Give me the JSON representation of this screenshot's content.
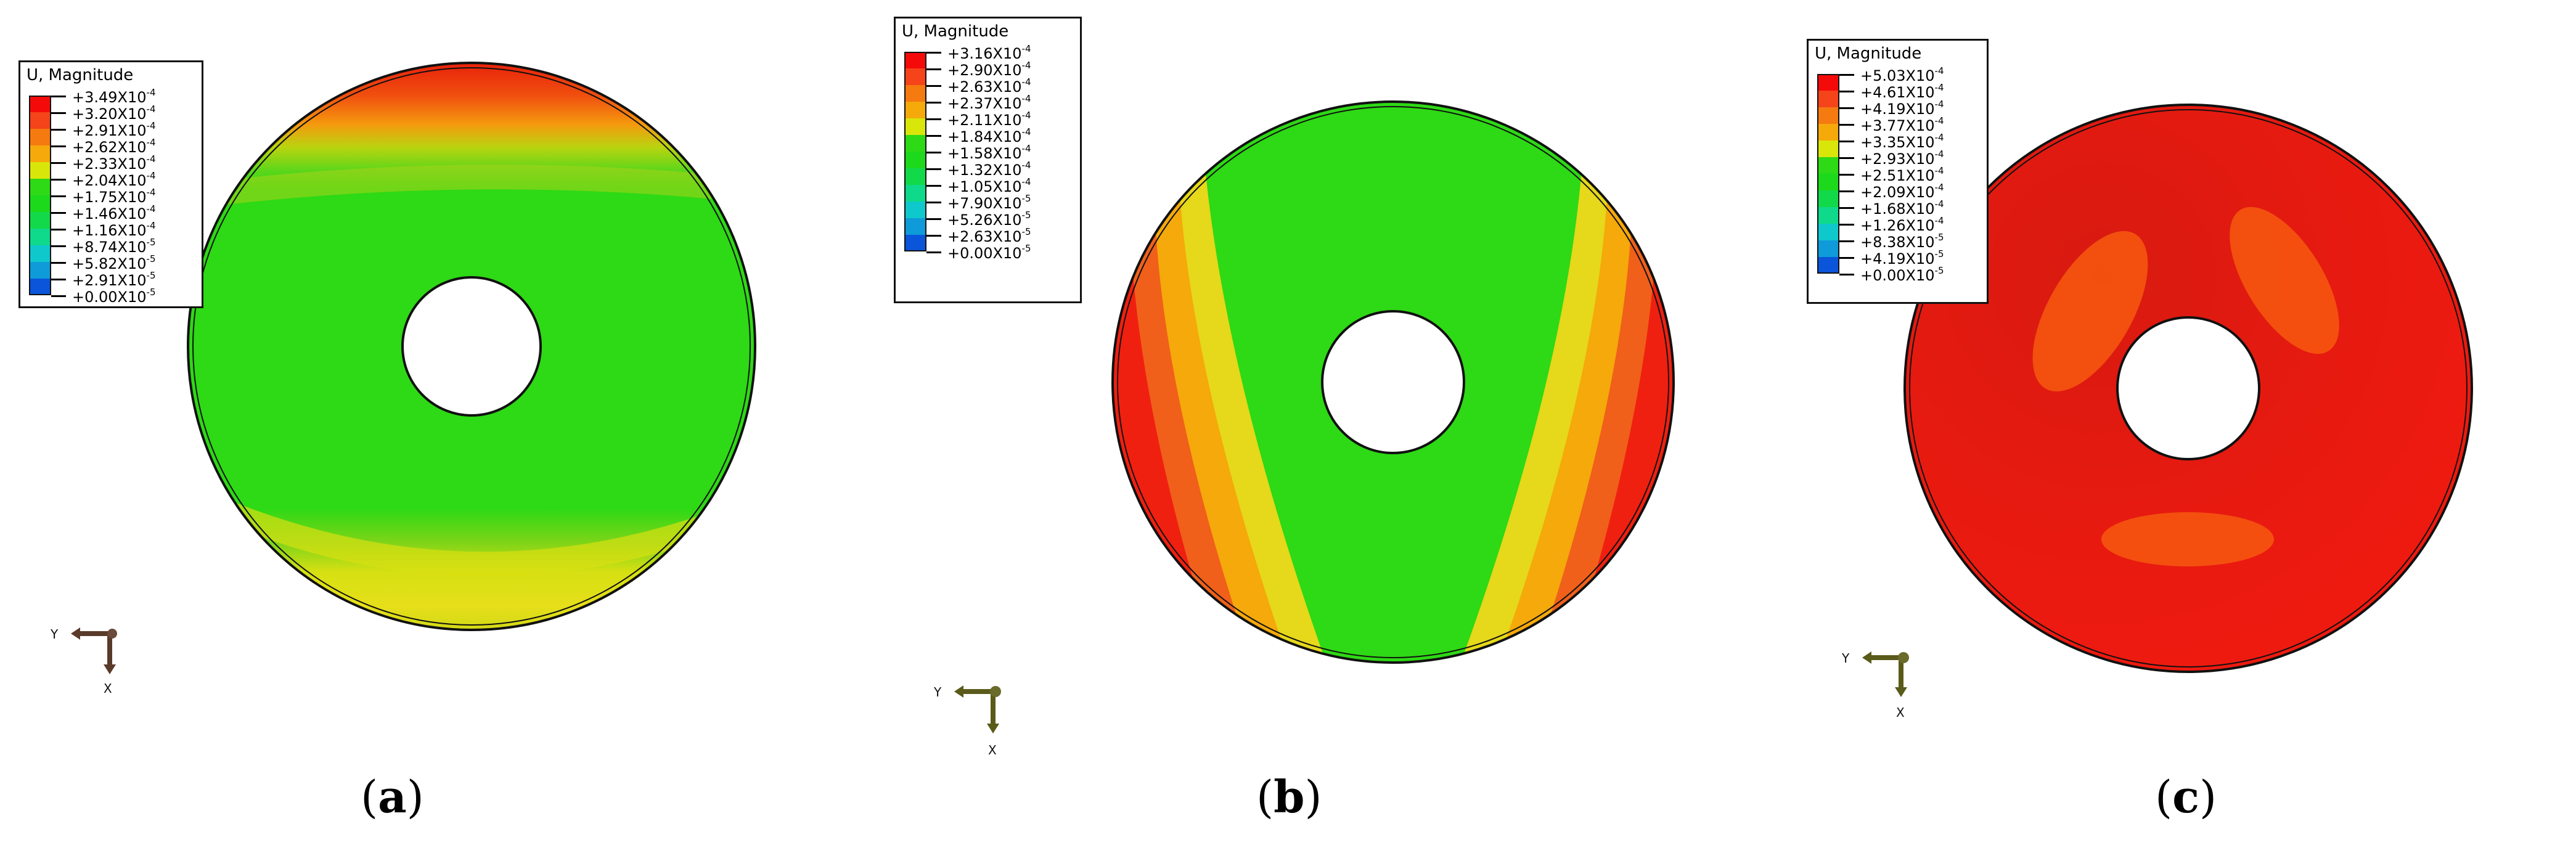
{
  "panels": [
    {
      "id": "a",
      "caption_letter": "a",
      "legend": {
        "title": "U, Magnitude",
        "values": [
          "+3.49X10-4",
          "+3.20X10-4",
          "+2.91X10-4",
          "+2.62X10-4",
          "+2.33X10-4",
          "+2.04X10-4",
          "+1.75X10-4",
          "+1.46X10-4",
          "+1.16X10-4",
          "+8.74X10-5",
          "+5.82X10-5",
          "+2.91X10-5",
          "+0.00X10-5"
        ]
      },
      "axes": {
        "horizontal": "Y",
        "vertical": "X"
      }
    },
    {
      "id": "b",
      "caption_letter": "b",
      "legend": {
        "title": "U, Magnitude",
        "values": [
          "+3.16X10-4",
          "+2.90X10-4",
          "+2.63X10-4",
          "+2.37X10-4",
          "+2.11X10-4",
          "+1.84X10-4",
          "+1.58X10-4",
          "+1.32X10-4",
          "+1.05X10-4",
          "+7.90X10-5",
          "+5.26X10-5",
          "+2.63X10-5",
          "+0.00X10-5"
        ]
      },
      "axes": {
        "horizontal": "Y",
        "vertical": "X"
      }
    },
    {
      "id": "c",
      "caption_letter": "c",
      "legend": {
        "title": "U, Magnitude",
        "values": [
          "+5.03X10-4",
          "+4.61X10-4",
          "+4.19X10-4",
          "+3.77X10-4",
          "+3.35X10-4",
          "+2.93X10-4",
          "+2.51X10-4",
          "+2.09X10-4",
          "+1.68X10-4",
          "+1.26X10-4",
          "+8.38X10-5",
          "+4.19X10-5",
          "+0.00X10-5"
        ]
      },
      "axes": {
        "horizontal": "Y",
        "vertical": "X"
      }
    }
  ],
  "colors": {
    "scale": [
      "#f50a0a",
      "#f5431a",
      "#f57a10",
      "#f5a90a",
      "#d9e60a",
      "#2ed915",
      "#1cd91c",
      "#12d94a",
      "#0fd98a",
      "#0fc8cc",
      "#0f9bd9",
      "#0a55d9",
      "#0a0a90"
    ],
    "red": "#f50a0a",
    "green": "#2ed915",
    "yellow": "#d9e60a",
    "orange": "#f57a10"
  }
}
